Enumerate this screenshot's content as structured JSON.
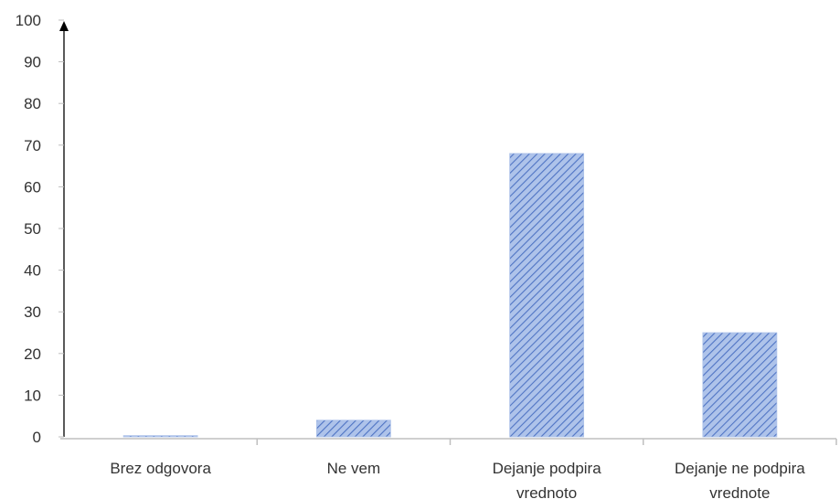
{
  "chart_data": {
    "type": "bar",
    "categories": [
      [
        "Brez odgovora"
      ],
      [
        "Ne vem"
      ],
      [
        "Dejanje podpira",
        "vrednoto"
      ],
      [
        "Dejanje ne podpira",
        "vrednote"
      ]
    ],
    "values": [
      0.3,
      4,
      68,
      25
    ],
    "ylim": [
      0,
      100
    ],
    "yticks": [
      "0",
      "10",
      "20",
      "30",
      "40",
      "50",
      "60",
      "70",
      "80",
      "90",
      "100"
    ],
    "title": "",
    "xlabel": "",
    "ylabel": "",
    "grid": false,
    "legend": "none",
    "colors": {
      "bar_fill": "#aec3ea",
      "bar_stripe": "#4f74c4",
      "axis": "#bfbfbf",
      "arrow": "#000000"
    }
  }
}
